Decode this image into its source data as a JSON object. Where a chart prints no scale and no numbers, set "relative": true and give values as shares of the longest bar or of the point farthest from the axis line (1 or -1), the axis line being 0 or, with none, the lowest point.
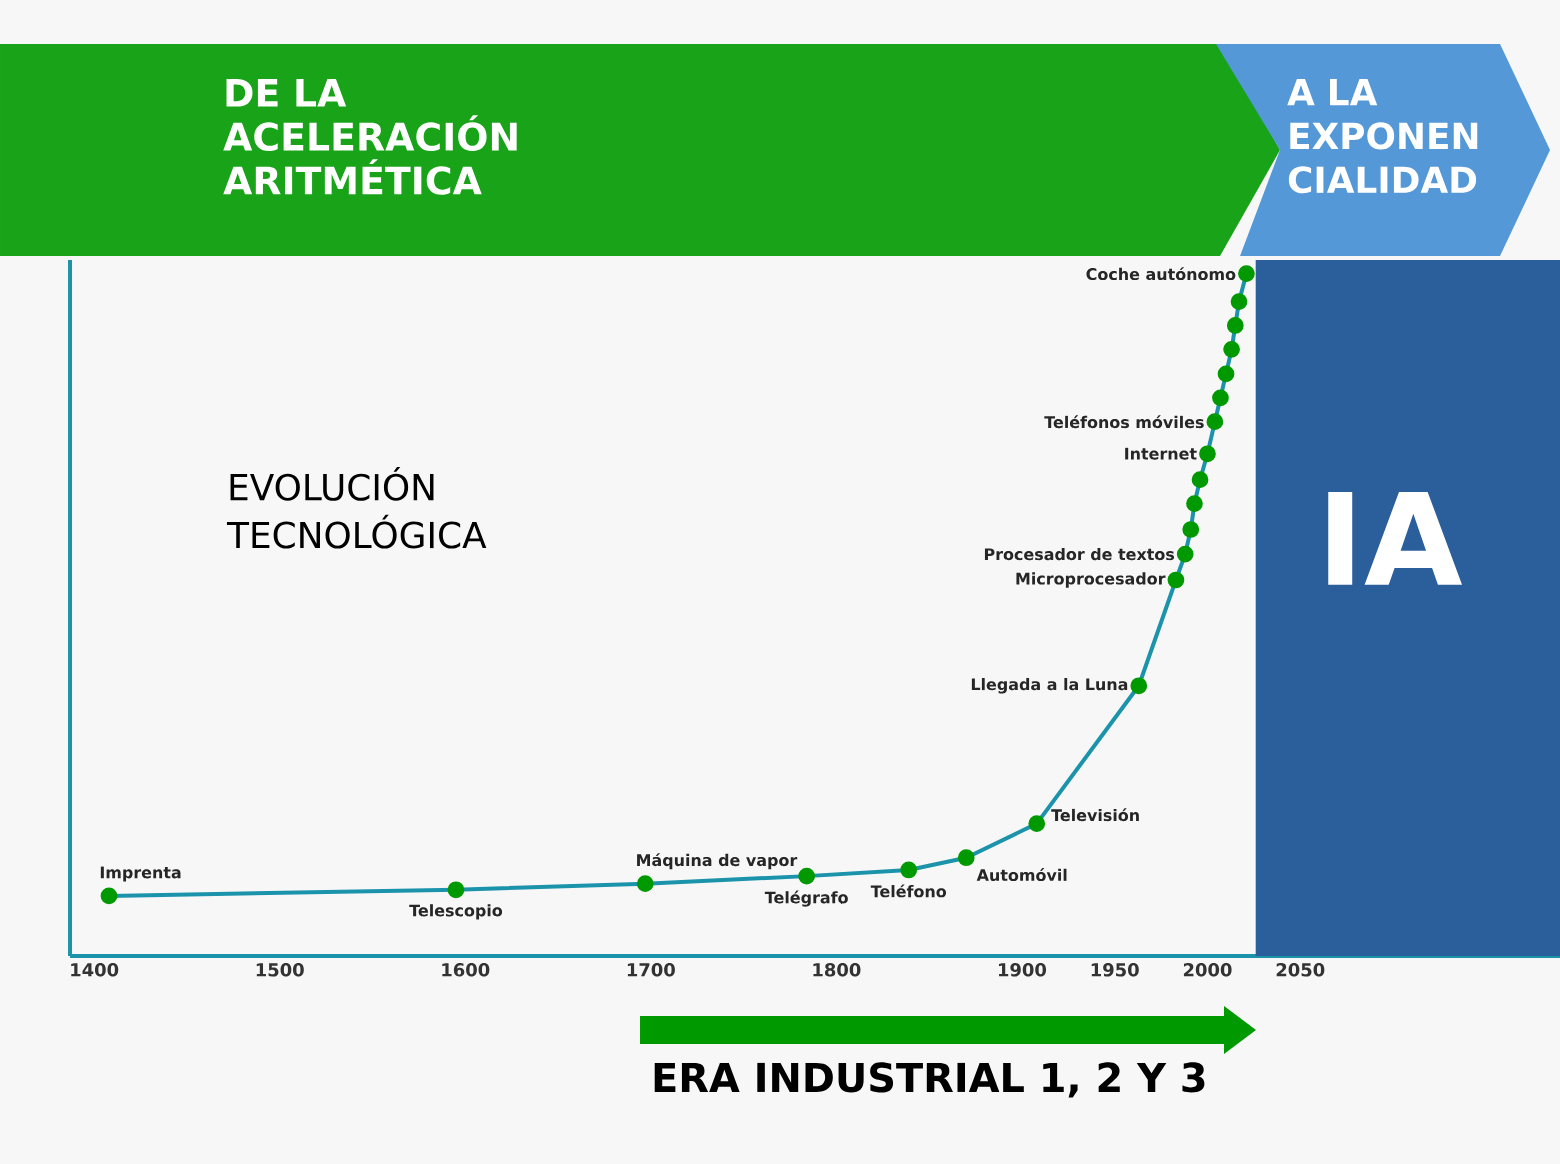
{
  "chart_data": {
    "type": "line",
    "title": "DE LA ACELERACIÓN ARITMÉTICA",
    "subtitle": "A LA EXPONEN CIALIDAD",
    "relative": true,
    "marker": "circle",
    "x": [
      1408,
      1595,
      1697,
      1784,
      1839,
      1870,
      1908,
      1963,
      1983,
      1988,
      1991,
      1993,
      1996,
      2000,
      2004,
      2007,
      2010,
      2013,
      2015,
      2017,
      2021
    ],
    "series": [
      {
        "color": "#1b93ab",
        "values": [
          0.088,
          0.097,
          0.106,
          0.117,
          0.126,
          0.144,
          0.194,
          0.396,
          0.551,
          0.589,
          0.625,
          0.663,
          0.698,
          0.736,
          0.783,
          0.818,
          0.853,
          0.889,
          0.924,
          0.959,
          1.0
        ]
      }
    ],
    "xlim": [
      1387,
      2190
    ],
    "xticks": [
      1400,
      1500,
      1600,
      1700,
      1800,
      1900,
      1950,
      2000,
      2050
    ],
    "bands": [
      {
        "axis": "x",
        "from": 2026,
        "to": 2190,
        "label": "IA",
        "color": "#2b5f9c"
      }
    ],
    "annotations": [
      {
        "text": "Imprenta",
        "x": 1408,
        "y": 0.088
      },
      {
        "text": "Telescopio",
        "x": 1595,
        "y": 0.097
      },
      {
        "text": "Máquina de vapor",
        "x": 1697,
        "y": 0.106
      },
      {
        "text": "Telégrafo",
        "x": 1784,
        "y": 0.117
      },
      {
        "text": "Teléfono",
        "x": 1839,
        "y": 0.126
      },
      {
        "text": "Automóvil",
        "x": 1870,
        "y": 0.144
      },
      {
        "text": "Televisión",
        "x": 1908,
        "y": 0.194
      },
      {
        "text": "Llegada a la Luna",
        "x": 1963,
        "y": 0.396
      },
      {
        "text": "Microprocesador",
        "x": 1983,
        "y": 0.551
      },
      {
        "text": "Procesador de textos",
        "x": 1988,
        "y": 0.589
      },
      {
        "text": "Internet",
        "x": 2000,
        "y": 0.736
      },
      {
        "text": "Teléfonos móviles",
        "x": 2004,
        "y": 0.783
      },
      {
        "text": "Coche autónomo",
        "x": 2021,
        "y": 1.0
      },
      "EVOLUCIÓN TECNOLÓGICA",
      "ERA INDUSTRIAL 1, 2 Y 3"
    ]
  }
}
